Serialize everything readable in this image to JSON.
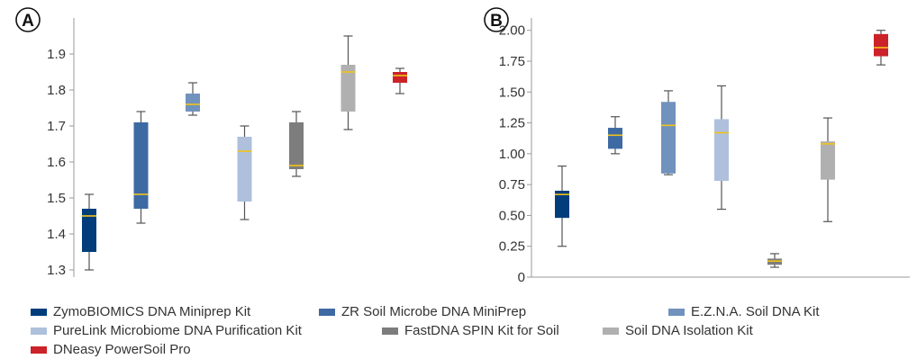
{
  "chart_data": [
    {
      "type": "box",
      "panel_label": "A",
      "title": "",
      "xlabel": "",
      "ylabel": "",
      "ylim": [
        1.28,
        2.0
      ],
      "yticks": [
        1.3,
        1.4,
        1.5,
        1.6,
        1.7,
        1.8,
        1.9
      ],
      "ytick_labels": [
        "1.3",
        "1.4",
        "1.5",
        "1.6",
        "1.7",
        "1.8",
        "1.9"
      ],
      "boxes": [
        {
          "series": 0,
          "min": 1.3,
          "q1": 1.35,
          "median": 1.45,
          "q3": 1.47,
          "max": 1.51
        },
        {
          "series": 1,
          "min": 1.43,
          "q1": 1.47,
          "median": 1.51,
          "q3": 1.71,
          "max": 1.74
        },
        {
          "series": 2,
          "min": 1.73,
          "q1": 1.74,
          "median": 1.76,
          "q3": 1.79,
          "max": 1.82
        },
        {
          "series": 3,
          "min": 1.44,
          "q1": 1.49,
          "median": 1.63,
          "q3": 1.67,
          "max": 1.7
        },
        {
          "series": 4,
          "min": 1.56,
          "q1": 1.58,
          "median": 1.59,
          "q3": 1.71,
          "max": 1.74
        },
        {
          "series": 5,
          "min": 1.69,
          "q1": 1.74,
          "median": 1.85,
          "q3": 1.87,
          "max": 1.95
        },
        {
          "series": 6,
          "min": 1.79,
          "q1": 1.82,
          "median": 1.84,
          "q3": 1.85,
          "max": 1.86
        }
      ]
    },
    {
      "type": "box",
      "panel_label": "B",
      "title": "",
      "xlabel": "",
      "ylabel": "",
      "ylim": [
        0,
        2.1
      ],
      "yticks": [
        0,
        0.25,
        0.5,
        0.75,
        1.0,
        1.25,
        1.5,
        1.75,
        2.0
      ],
      "ytick_labels": [
        "0",
        "0.25",
        "0.50",
        "0.75",
        "1.00",
        "1.25",
        "1.50",
        "1.75",
        "2.00"
      ],
      "boxes": [
        {
          "series": 0,
          "min": 0.25,
          "q1": 0.48,
          "median": 0.67,
          "q3": 0.7,
          "max": 0.9
        },
        {
          "series": 1,
          "min": 1.0,
          "q1": 1.04,
          "median": 1.15,
          "q3": 1.21,
          "max": 1.3
        },
        {
          "series": 2,
          "min": 0.83,
          "q1": 0.84,
          "median": 1.23,
          "q3": 1.42,
          "max": 1.51
        },
        {
          "series": 3,
          "min": 0.55,
          "q1": 0.78,
          "median": 1.17,
          "q3": 1.28,
          "max": 1.55
        },
        {
          "series": 4,
          "min": 0.08,
          "q1": 0.1,
          "median": 0.13,
          "q3": 0.15,
          "max": 0.19
        },
        {
          "series": 5,
          "min": 0.45,
          "q1": 0.79,
          "median": 1.08,
          "q3": 1.1,
          "max": 1.29
        },
        {
          "series": 6,
          "min": 1.72,
          "q1": 1.79,
          "median": 1.86,
          "q3": 1.97,
          "max": 2.0
        }
      ]
    }
  ],
  "series": [
    {
      "name": "ZymoBIOMICS DNA Miniprep Kit",
      "color": "#003d7a"
    },
    {
      "name": "ZR Soil Microbe DNA MiniPrep",
      "color": "#3e6aa3"
    },
    {
      "name": "E.Z.N.A. Soil DNA Kit",
      "color": "#7192bd"
    },
    {
      "name": "PureLink Microbiome DNA Purification Kit",
      "color": "#aec0dc"
    },
    {
      "name": "FastDNA SPIN Kit for Soil",
      "color": "#7d7d7d"
    },
    {
      "name": "Soil DNA Isolation Kit",
      "color": "#b0b0b0"
    },
    {
      "name": "DNeasy PowerSoil Pro",
      "color": "#cc2229"
    }
  ],
  "median_color": "#f2c318",
  "whisker_color": "#555555",
  "axis_color": "#9a9a9a"
}
